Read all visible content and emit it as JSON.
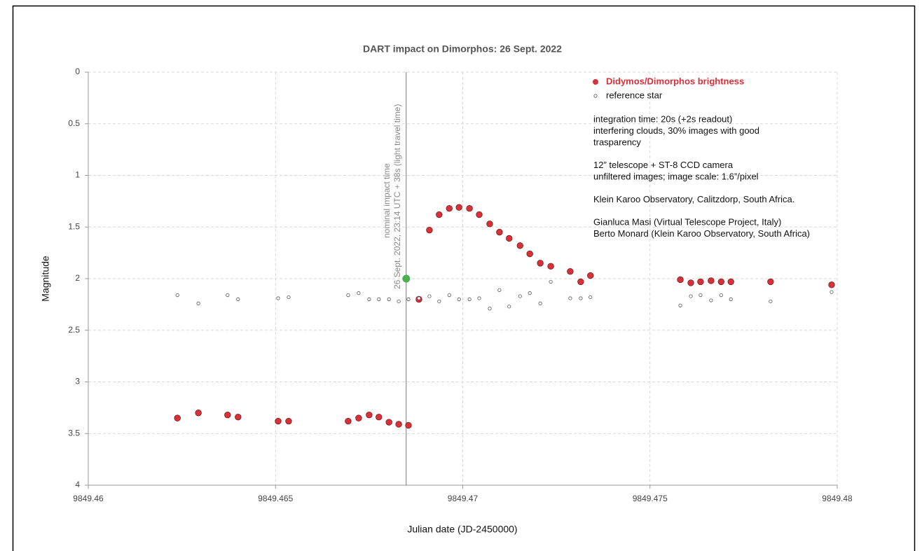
{
  "chart_data": {
    "type": "scatter",
    "title": "DART impact on Dimorphos: 26 Sept. 2022",
    "x_label": "Julian date (JD-2450000)",
    "y_label": "Magnitude",
    "xlim": [
      9849.46,
      9849.48
    ],
    "xticks": [
      9849.46,
      9849.465,
      9849.47,
      9849.475,
      9849.48
    ],
    "ylim": [
      0,
      4
    ],
    "yticks": [
      0,
      0.5,
      1,
      1.5,
      2,
      2.5,
      3,
      3.5,
      4
    ],
    "y_inverted": true,
    "grid": true,
    "series": [
      {
        "name": "Didymos/Dimorphos brightness",
        "color": "#d9313a",
        "marker": "filled",
        "x": [
          9849.46238,
          9849.46294,
          9849.46372,
          9849.464,
          9849.46507,
          9849.46535,
          9849.46694,
          9849.46722,
          9849.4675,
          9849.46776,
          9849.46803,
          9849.46829,
          9849.46855,
          9849.46883,
          9849.46911,
          9849.46937,
          9849.46964,
          9849.4699,
          9849.47018,
          9849.47044,
          9849.47072,
          9849.47098,
          9849.47124,
          9849.47153,
          9849.47179,
          9849.47207,
          9849.47235,
          9849.47287,
          9849.47315,
          9849.47341,
          9849.47581,
          9849.47609,
          9849.47635,
          9849.47663,
          9849.4769,
          9849.47716,
          9849.47822,
          9849.47985
        ],
        "values": [
          3.35,
          3.3,
          3.32,
          3.34,
          3.38,
          3.38,
          3.38,
          3.35,
          3.32,
          3.34,
          3.39,
          3.41,
          3.42,
          2.2,
          1.53,
          1.38,
          1.32,
          1.31,
          1.32,
          1.38,
          1.47,
          1.55,
          1.61,
          1.68,
          1.76,
          1.85,
          1.88,
          1.93,
          2.03,
          1.97,
          2.01,
          2.04,
          2.03,
          2.02,
          2.03,
          2.03,
          2.03,
          2.06
        ]
      },
      {
        "name": "reference star",
        "color": "#555555",
        "marker": "open",
        "x": [
          9849.46238,
          9849.46294,
          9849.46372,
          9849.464,
          9849.46507,
          9849.46535,
          9849.46694,
          9849.46722,
          9849.4675,
          9849.46776,
          9849.46803,
          9849.46829,
          9849.46855,
          9849.46883,
          9849.46911,
          9849.46937,
          9849.46964,
          9849.4699,
          9849.47018,
          9849.47044,
          9849.47072,
          9849.47098,
          9849.47124,
          9849.47153,
          9849.47179,
          9849.47207,
          9849.47235,
          9849.47287,
          9849.47315,
          9849.47341,
          9849.47581,
          9849.47609,
          9849.47635,
          9849.47663,
          9849.4769,
          9849.47716,
          9849.47822,
          9849.47985
        ],
        "values": [
          2.16,
          2.24,
          2.16,
          2.2,
          2.19,
          2.18,
          2.16,
          2.14,
          2.2,
          2.2,
          2.2,
          2.22,
          2.2,
          2.19,
          2.17,
          2.22,
          2.16,
          2.2,
          2.2,
          2.19,
          2.29,
          2.11,
          2.27,
          2.17,
          2.14,
          2.24,
          2.03,
          2.19,
          2.19,
          2.18,
          2.26,
          2.17,
          2.16,
          2.21,
          2.16,
          2.2,
          2.22,
          2.13
        ]
      }
    ],
    "impact": {
      "x": 9849.46849,
      "y": 2.0,
      "color": "#4caf50",
      "label": [
        "nominal impact time",
        "26 Sept. 2022, 23:14 UTC + 38s (light travel time)"
      ]
    },
    "notes": [
      [
        "integration time: 20s (+2s readout)",
        "interfering clouds, 30% images with good",
        "trasparency"
      ],
      [
        "12” telescope + ST-8 CCD camera",
        "unfiltered images; image scale: 1.6”/pixel"
      ],
      [
        "Klein Karoo Observatory, Calitzdorp, South Africa."
      ],
      [
        "Gianluca Masi (Virtual Telescope Project, Italy)",
        "Berto Monard (Klein Karoo Observatory, South Africa)"
      ]
    ]
  }
}
